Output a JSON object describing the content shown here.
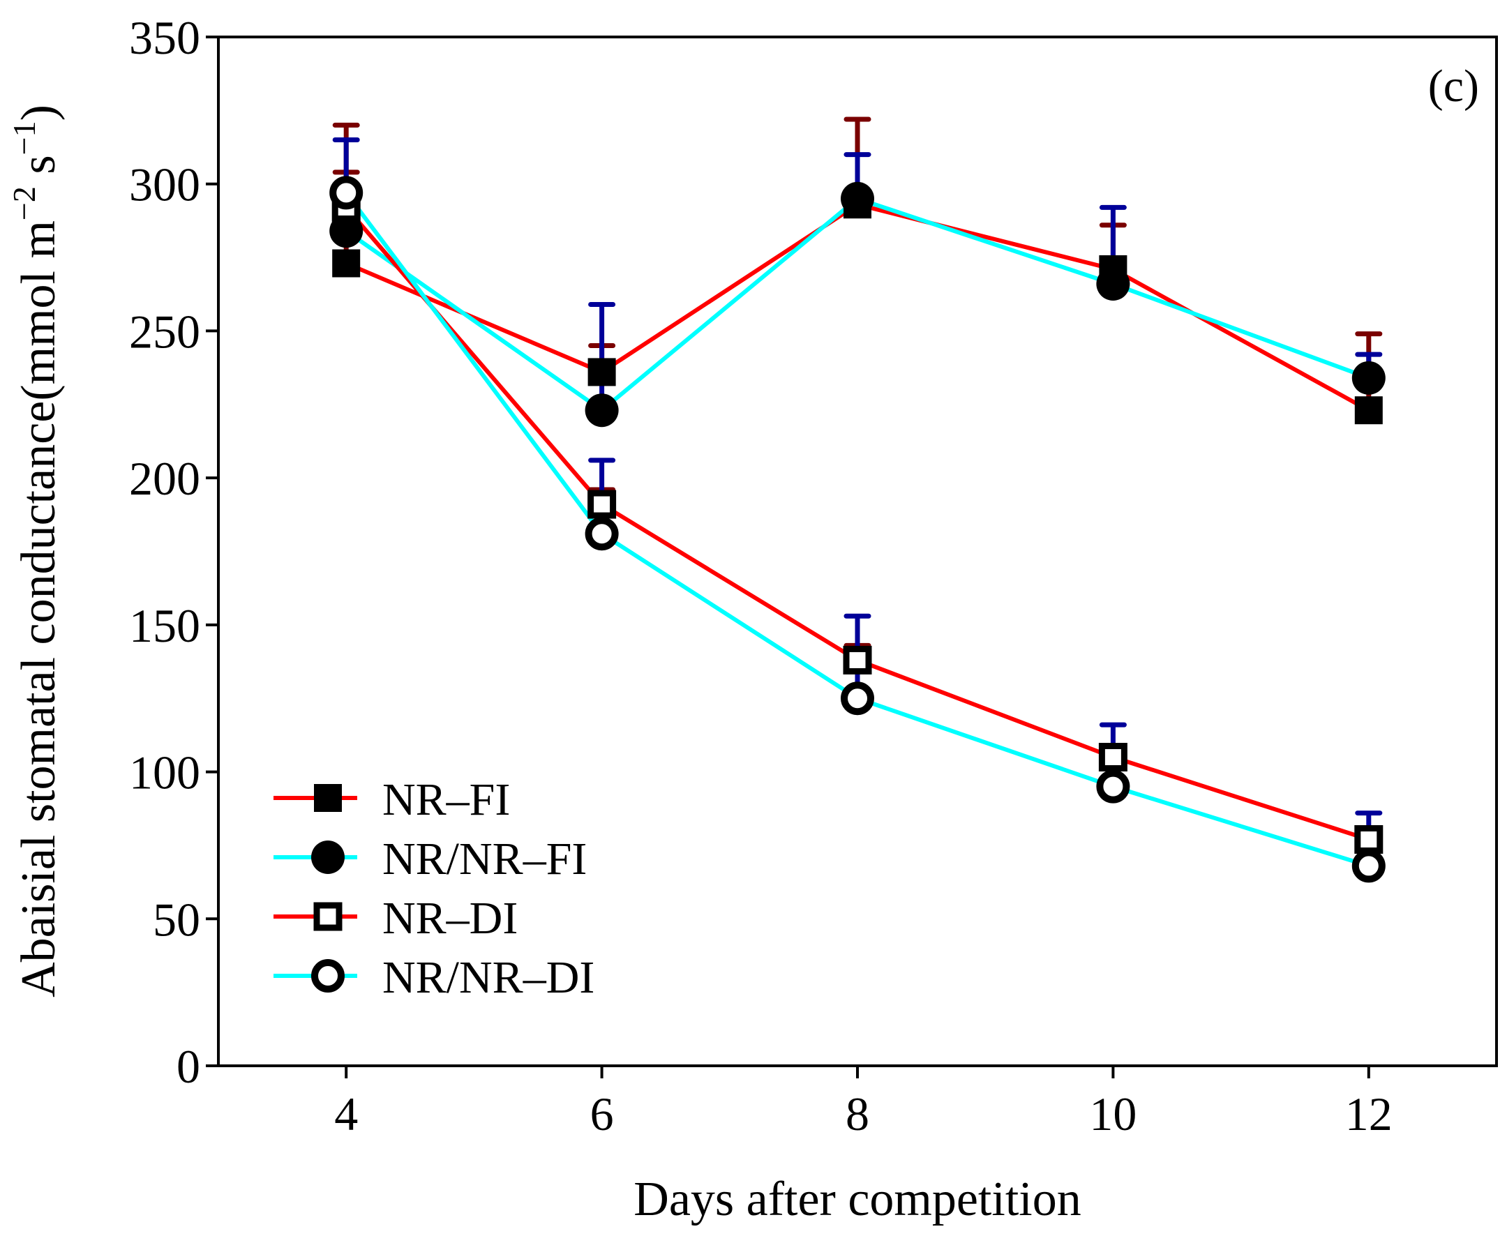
{
  "chart_data": {
    "type": "line",
    "panel_label": "(c)",
    "xlabel": "Days after competition",
    "ylabel": "Abaisial stomatal conductance(mmol m",
    "ylabel_sup1": "−2",
    "ylabel_mid": " s",
    "ylabel_sup2": "−1",
    "ylabel_end": ")",
    "xlim": [
      3,
      13
    ],
    "ylim": [
      0,
      350
    ],
    "xticks": [
      4,
      6,
      8,
      10,
      12
    ],
    "yticks": [
      0,
      50,
      100,
      150,
      200,
      250,
      300,
      350
    ],
    "x": [
      4,
      6,
      8,
      10,
      12
    ],
    "legend_position": "bottom-left",
    "series": [
      {
        "name": "NR–FI",
        "marker": "filled-square",
        "color": "#ff0000",
        "error_color": "#7a0000",
        "values": [
          273,
          236,
          293,
          271,
          223
        ],
        "errors": [
          31,
          9,
          29,
          15,
          26
        ]
      },
      {
        "name": "NR/NR–FI",
        "marker": "filled-circle",
        "color": "#00ffff",
        "error_color": "#000099",
        "values": [
          284,
          223,
          295,
          266,
          234
        ],
        "errors": [
          10,
          36,
          15,
          26,
          8
        ]
      },
      {
        "name": "NR–DI",
        "marker": "open-square",
        "color": "#ff0000",
        "error_color": "#7a0000",
        "values": [
          292,
          191,
          138,
          105,
          77
        ],
        "errors": [
          28,
          5,
          5,
          4,
          3
        ]
      },
      {
        "name": "NR/NR–DI",
        "marker": "open-circle",
        "color": "#00ffff",
        "error_color": "#000099",
        "values": [
          297,
          181,
          125,
          95,
          68
        ],
        "errors": [
          18,
          25,
          28,
          21,
          18
        ]
      }
    ]
  }
}
